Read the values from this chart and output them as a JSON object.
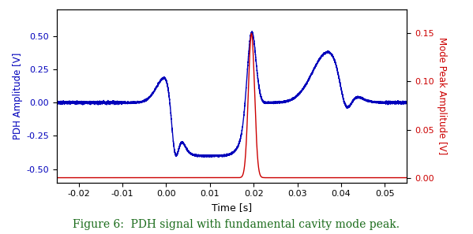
{
  "xlabel": "Time [s]",
  "ylabel_left": "PDH Amplitude [V]",
  "ylabel_right": "Mode Peak Amplitude [V]",
  "caption": "Figure 6:  PDH signal with fundamental cavity mode peak.",
  "caption_color": "#1a6b1a",
  "xlim": [
    -0.025,
    0.055
  ],
  "ylim_left": [
    -0.6,
    0.7
  ],
  "ylim_right": [
    -0.005,
    0.175
  ],
  "xticks": [
    -0.02,
    -0.01,
    0.0,
    0.01,
    0.02,
    0.03,
    0.04,
    0.05
  ],
  "yticks_left": [
    -0.5,
    -0.25,
    0.0,
    0.25,
    0.5
  ],
  "yticks_right": [
    0.0,
    0.05,
    0.1,
    0.15
  ],
  "blue_color": "#0000bb",
  "red_color": "#cc0000",
  "line_width": 1.0,
  "figsize": [
    5.99,
    2.97
  ],
  "dpi": 100
}
